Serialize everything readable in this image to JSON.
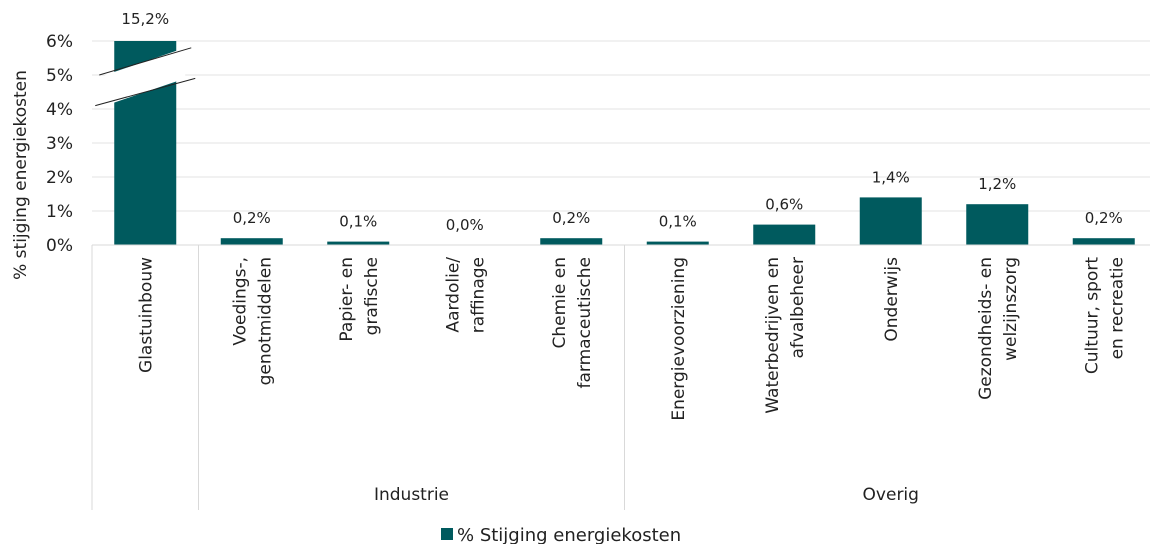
{
  "chart_data": {
    "type": "bar",
    "ylabel": "% stijging energiekosten",
    "ylim": [
      0,
      6
    ],
    "y_ticks": [
      "0%",
      "1%",
      "2%",
      "3%",
      "4%",
      "5%",
      "6%"
    ],
    "axis_break": true,
    "grid": true,
    "legend_position": "bottom",
    "series": [
      {
        "name": "% Stijging energiekosten",
        "color": "#005a5e",
        "values": [
          15.2,
          0.2,
          0.1,
          0.0,
          0.2,
          0.1,
          0.6,
          1.4,
          1.2,
          0.2
        ],
        "labels": [
          "15,2%",
          "0,2%",
          "0,1%",
          "0,0%",
          "0,2%",
          "0,1%",
          "0,6%",
          "1,4%",
          "1,2%",
          "0,2%"
        ]
      }
    ],
    "categories": [
      [
        "Glastuinbouw"
      ],
      [
        "Voedings-,",
        "genotmiddelen"
      ],
      [
        "Papier- en",
        "grafische"
      ],
      [
        "Aardolie/",
        "raffinage"
      ],
      [
        "Chemie en",
        "farmaceutische"
      ],
      [
        "Energievoorziening"
      ],
      [
        "Waterbedrijven en",
        "afvalbeheer"
      ],
      [
        "Onderwijs"
      ],
      [
        "Gezondheids- en",
        "welzijnszorg"
      ],
      [
        "Cultuur, sport",
        "en recreatie"
      ]
    ],
    "groups": [
      {
        "label": "",
        "start": 0,
        "end": 0
      },
      {
        "label": "Industrie",
        "start": 1,
        "end": 4
      },
      {
        "label": "Overig",
        "start": 5,
        "end": 9
      }
    ]
  }
}
